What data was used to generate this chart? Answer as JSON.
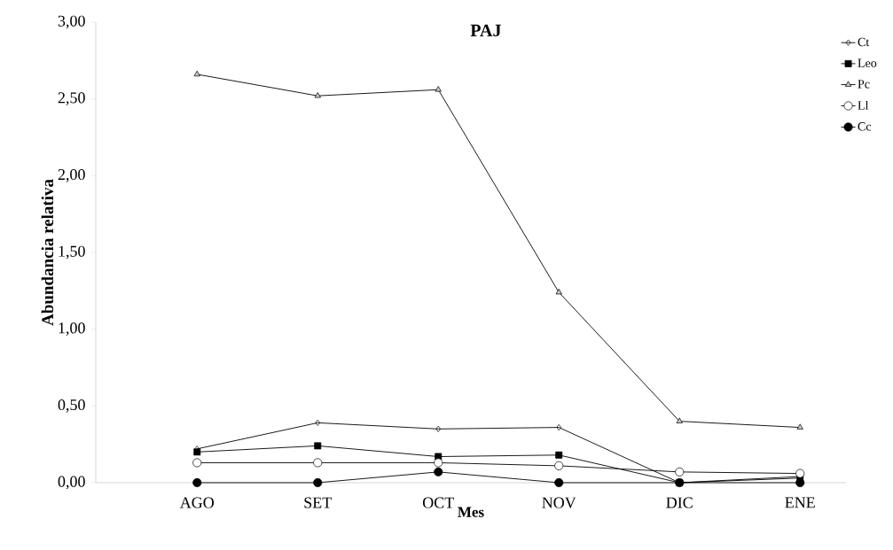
{
  "chart_data": {
    "type": "line",
    "title": "PAJ",
    "xlabel": "Mes",
    "ylabel": "Abundancia relativa",
    "categories": [
      "AGO",
      "SET",
      "OCT",
      "NOV",
      "DIC",
      "ENE"
    ],
    "series": [
      {
        "name": "Ct",
        "color": "#000000",
        "marker": "diamond",
        "values": [
          0.22,
          0.39,
          0.35,
          0.36,
          0.0,
          0.03
        ]
      },
      {
        "name": "Leo",
        "color": "#000000",
        "marker": "square",
        "values": [
          0.2,
          0.24,
          0.17,
          0.18,
          0.0,
          0.04
        ]
      },
      {
        "name": "Pc",
        "color": "#000000",
        "marker": "triangle",
        "values": [
          2.66,
          2.52,
          2.56,
          1.24,
          0.4,
          0.36
        ]
      },
      {
        "name": "Ll",
        "color": "#000000",
        "marker": "circle",
        "values": [
          0.13,
          0.13,
          0.13,
          0.11,
          0.07,
          0.06
        ]
      },
      {
        "name": "Cc",
        "color": "#000000",
        "marker": "circle",
        "values": [
          0.0,
          0.0,
          0.07,
          0.0,
          0.0,
          0.0
        ]
      }
    ],
    "ylim": [
      0,
      3
    ],
    "yticks": [
      {
        "value": 0,
        "label": "0,00"
      },
      {
        "value": 0.5,
        "label": "0,50"
      },
      {
        "value": 1,
        "label": "1,00"
      },
      {
        "value": 1.5,
        "label": "1,50"
      },
      {
        "value": 2,
        "label": "2,00"
      },
      {
        "value": 2.5,
        "label": "2,50"
      },
      {
        "value": 3,
        "label": "3,00"
      }
    ],
    "grid": false,
    "legend": "right",
    "line_style": "solid"
  }
}
